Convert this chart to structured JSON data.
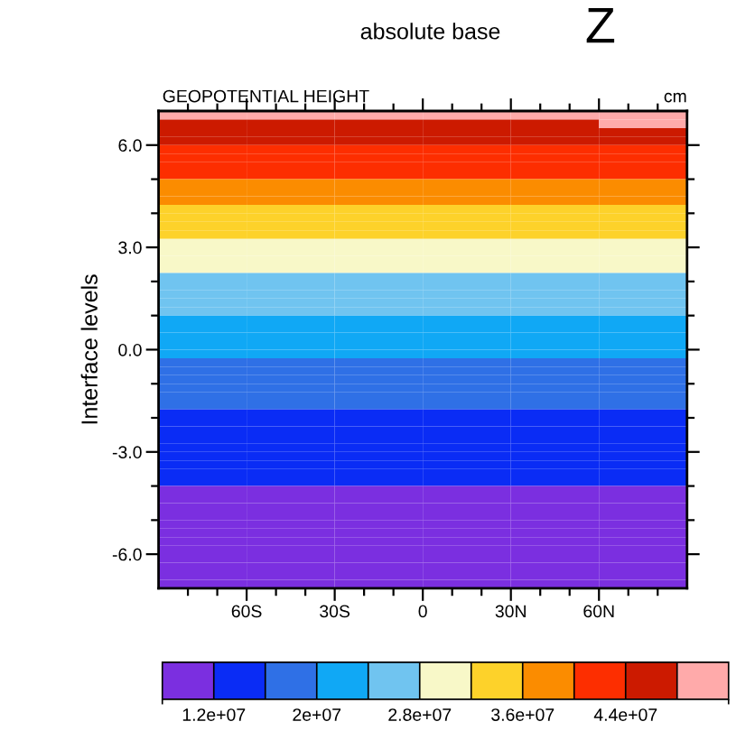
{
  "chart_data": {
    "type": "heatmap",
    "title": "absolute base",
    "ylabel": "Interface levels",
    "annotations": [
      "Z",
      "GEOPOTENTIAL HEIGHT",
      "cm"
    ],
    "x": [
      -75,
      -45,
      -15,
      15,
      45,
      75
    ],
    "xlim": [
      -90,
      90
    ],
    "xticks": [
      {
        "value": -80,
        "label": null
      },
      {
        "value": -70,
        "label": null
      },
      {
        "value": -60,
        "label": "60S"
      },
      {
        "value": -50,
        "label": null
      },
      {
        "value": -40,
        "label": null
      },
      {
        "value": -30,
        "label": "30S"
      },
      {
        "value": -20,
        "label": null
      },
      {
        "value": -10,
        "label": null
      },
      {
        "value": 0,
        "label": "0"
      },
      {
        "value": 10,
        "label": null
      },
      {
        "value": 20,
        "label": null
      },
      {
        "value": 30,
        "label": "30N"
      },
      {
        "value": 40,
        "label": null
      },
      {
        "value": 50,
        "label": null
      },
      {
        "value": 60,
        "label": "60N"
      },
      {
        "value": 70,
        "label": null
      },
      {
        "value": 80,
        "label": null
      }
    ],
    "ylim": [
      -7,
      7
    ],
    "yticks": [
      {
        "value": -6,
        "label": "-6.0"
      },
      {
        "value": -5,
        "label": null
      },
      {
        "value": -4,
        "label": null
      },
      {
        "value": -3,
        "label": "-3.0"
      },
      {
        "value": -2,
        "label": null
      },
      {
        "value": -1,
        "label": null
      },
      {
        "value": 0,
        "label": "0.0"
      },
      {
        "value": 1,
        "label": null
      },
      {
        "value": 2,
        "label": null
      },
      {
        "value": 3,
        "label": "3.0"
      },
      {
        "value": 4,
        "label": null
      },
      {
        "value": 5,
        "label": null
      },
      {
        "value": 6,
        "label": "6.0"
      }
    ],
    "colors": [
      "#7b2fe0",
      "#0a2cf5",
      "#2f70e6",
      "#10a8f5",
      "#70c4f0",
      "#f8f8c8",
      "#fdd22a",
      "#fb8c00",
      "#fd2e00",
      "#cc1a00",
      "#ffaaaa"
    ],
    "clim": [
      8000000,
      52000000
    ],
    "cticks": [
      {
        "value": 12000000,
        "label": "1.2e+07"
      },
      {
        "value": 16000000,
        "label": null
      },
      {
        "value": 20000000,
        "label": "2e+07"
      },
      {
        "value": 24000000,
        "label": null
      },
      {
        "value": 28000000,
        "label": "2.8e+07"
      },
      {
        "value": 32000000,
        "label": null
      },
      {
        "value": 36000000,
        "label": "3.6e+07"
      },
      {
        "value": 40000000,
        "label": null
      },
      {
        "value": 44000000,
        "label": "4.4e+07"
      },
      {
        "value": 48000000,
        "label": null
      }
    ],
    "cells": [
      [
        50000000.0,
        50000000.0,
        50000000.0,
        50000000.0,
        50000000.0,
        50000000.0
      ],
      [
        46000000.0,
        46000000.0,
        46000000.0,
        46000000.0,
        46000000.0,
        50000000.0
      ],
      [
        46000000.0,
        46000000.0,
        46000000.0,
        46000000.0,
        46000000.0,
        46000000.0
      ],
      [
        46000000.0,
        46000000.0,
        46000000.0,
        46000000.0,
        46000000.0,
        46000000.0
      ],
      [
        42000000.0,
        42000000.0,
        42000000.0,
        42000000.0,
        42000000.0,
        42000000.0
      ],
      [
        42000000.0,
        42000000.0,
        42000000.0,
        42000000.0,
        42000000.0,
        42000000.0
      ],
      [
        42000000.0,
        42000000.0,
        42000000.0,
        42000000.0,
        42000000.0,
        42000000.0
      ],
      [
        42000000.0,
        42000000.0,
        42000000.0,
        42000000.0,
        42000000.0,
        42000000.0
      ],
      [
        38000000.0,
        38000000.0,
        38000000.0,
        38000000.0,
        38000000.0,
        38000000.0
      ],
      [
        38000000.0,
        38000000.0,
        38000000.0,
        38000000.0,
        38000000.0,
        38000000.0
      ],
      [
        38000000.0,
        38000000.0,
        38000000.0,
        38000000.0,
        38000000.0,
        38000000.0
      ],
      [
        34000000.0,
        34000000.0,
        34000000.0,
        34000000.0,
        34000000.0,
        34000000.0
      ],
      [
        34000000.0,
        34000000.0,
        34000000.0,
        34000000.0,
        34000000.0,
        34000000.0
      ],
      [
        34000000.0,
        34000000.0,
        34000000.0,
        34000000.0,
        34000000.0,
        34000000.0
      ],
      [
        34000000.0,
        34000000.0,
        34000000.0,
        34000000.0,
        34000000.0,
        34000000.0
      ],
      [
        30000000.0,
        30000000.0,
        30000000.0,
        30000000.0,
        30000000.0,
        30000000.0
      ],
      [
        30000000.0,
        30000000.0,
        30000000.0,
        30000000.0,
        30000000.0,
        30000000.0
      ],
      [
        30000000.0,
        30000000.0,
        30000000.0,
        30000000.0,
        30000000.0,
        30000000.0
      ],
      [
        30000000.0,
        30000000.0,
        30000000.0,
        30000000.0,
        30000000.0,
        30000000.0
      ],
      [
        26000000.0,
        26000000.0,
        26000000.0,
        26000000.0,
        26000000.0,
        26000000.0
      ],
      [
        26000000.0,
        26000000.0,
        26000000.0,
        26000000.0,
        26000000.0,
        26000000.0
      ],
      [
        26000000.0,
        26000000.0,
        26000000.0,
        26000000.0,
        26000000.0,
        26000000.0
      ],
      [
        26000000.0,
        26000000.0,
        26000000.0,
        26000000.0,
        26000000.0,
        26000000.0
      ],
      [
        26000000.0,
        26000000.0,
        26000000.0,
        26000000.0,
        26000000.0,
        26000000.0
      ],
      [
        22000000.0,
        22000000.0,
        22000000.0,
        22000000.0,
        22000000.0,
        22000000.0
      ],
      [
        22000000.0,
        22000000.0,
        22000000.0,
        22000000.0,
        22000000.0,
        22000000.0
      ],
      [
        22000000.0,
        22000000.0,
        22000000.0,
        22000000.0,
        22000000.0,
        22000000.0
      ],
      [
        22000000.0,
        22000000.0,
        22000000.0,
        22000000.0,
        22000000.0,
        22000000.0
      ],
      [
        22000000.0,
        22000000.0,
        22000000.0,
        22000000.0,
        22000000.0,
        22000000.0
      ],
      [
        18000000.0,
        18000000.0,
        18000000.0,
        18000000.0,
        18000000.0,
        18000000.0
      ],
      [
        18000000.0,
        18000000.0,
        18000000.0,
        18000000.0,
        18000000.0,
        18000000.0
      ],
      [
        18000000.0,
        18000000.0,
        18000000.0,
        18000000.0,
        18000000.0,
        18000000.0
      ],
      [
        18000000.0,
        18000000.0,
        18000000.0,
        18000000.0,
        18000000.0,
        18000000.0
      ],
      [
        18000000.0,
        18000000.0,
        18000000.0,
        18000000.0,
        18000000.0,
        18000000.0
      ],
      [
        18000000.0,
        18000000.0,
        18000000.0,
        18000000.0,
        18000000.0,
        18000000.0
      ],
      [
        14000000.0,
        14000000.0,
        14000000.0,
        14000000.0,
        14000000.0,
        14000000.0
      ],
      [
        14000000.0,
        14000000.0,
        14000000.0,
        14000000.0,
        14000000.0,
        14000000.0
      ],
      [
        14000000.0,
        14000000.0,
        14000000.0,
        14000000.0,
        14000000.0,
        14000000.0
      ],
      [
        14000000.0,
        14000000.0,
        14000000.0,
        14000000.0,
        14000000.0,
        14000000.0
      ],
      [
        14000000.0,
        14000000.0,
        14000000.0,
        14000000.0,
        14000000.0,
        14000000.0
      ],
      [
        14000000.0,
        14000000.0,
        14000000.0,
        14000000.0,
        14000000.0,
        14000000.0
      ],
      [
        14000000.0,
        14000000.0,
        14000000.0,
        14000000.0,
        14000000.0,
        14000000.0
      ],
      [
        14000000.0,
        14000000.0,
        14000000.0,
        14000000.0,
        14000000.0,
        14000000.0
      ],
      [
        14000000.0,
        14000000.0,
        14000000.0,
        14000000.0,
        14000000.0,
        14000000.0
      ],
      [
        10000000.0,
        10000000.0,
        10000000.0,
        10000000.0,
        10000000.0,
        10000000.0
      ],
      [
        10000000.0,
        10000000.0,
        10000000.0,
        10000000.0,
        10000000.0,
        10000000.0
      ],
      [
        10000000.0,
        10000000.0,
        10000000.0,
        10000000.0,
        10000000.0,
        10000000.0
      ],
      [
        10000000.0,
        10000000.0,
        10000000.0,
        10000000.0,
        10000000.0,
        10000000.0
      ],
      [
        10000000.0,
        10000000.0,
        10000000.0,
        10000000.0,
        10000000.0,
        10000000.0
      ],
      [
        10000000.0,
        10000000.0,
        10000000.0,
        10000000.0,
        10000000.0,
        10000000.0
      ],
      [
        10000000.0,
        10000000.0,
        10000000.0,
        10000000.0,
        10000000.0,
        10000000.0
      ],
      [
        10000000.0,
        10000000.0,
        10000000.0,
        10000000.0,
        10000000.0,
        10000000.0
      ],
      [
        10000000.0,
        10000000.0,
        10000000.0,
        10000000.0,
        10000000.0,
        10000000.0
      ],
      [
        10000000.0,
        10000000.0,
        10000000.0,
        10000000.0,
        10000000.0,
        10000000.0
      ],
      [
        10000000.0,
        10000000.0,
        10000000.0,
        10000000.0,
        10000000.0,
        10000000.0
      ],
      [
        10000000.0,
        10000000.0,
        10000000.0,
        10000000.0,
        10000000.0,
        10000000.0
      ]
    ]
  }
}
